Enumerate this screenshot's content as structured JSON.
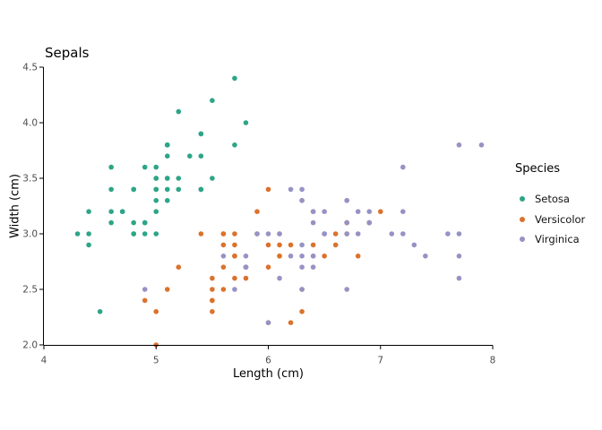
{
  "chart_data": {
    "type": "scatter",
    "title": "Sepals",
    "xlabel": "Length (cm)",
    "ylabel": "Width (cm)",
    "xlim": [
      4,
      8
    ],
    "ylim": [
      2.0,
      4.5
    ],
    "x_ticks": [
      "4",
      "5",
      "6",
      "7",
      "8"
    ],
    "y_ticks": [
      "2.0",
      "2.5",
      "3.0",
      "3.5",
      "4.0",
      "4.5"
    ],
    "grid": false,
    "legend_title": "Species",
    "legend_position": "right",
    "axis_color": "#000000",
    "tick_label_color": "#4d4d4d",
    "series": [
      {
        "name": "Setosa",
        "color": "#2DA587",
        "points": [
          [
            5.1,
            3.5
          ],
          [
            4.9,
            3.0
          ],
          [
            4.7,
            3.2
          ],
          [
            4.6,
            3.1
          ],
          [
            5.0,
            3.6
          ],
          [
            5.4,
            3.9
          ],
          [
            4.6,
            3.4
          ],
          [
            5.0,
            3.4
          ],
          [
            4.4,
            2.9
          ],
          [
            4.9,
            3.1
          ],
          [
            5.4,
            3.7
          ],
          [
            4.8,
            3.4
          ],
          [
            4.8,
            3.0
          ],
          [
            4.3,
            3.0
          ],
          [
            5.8,
            4.0
          ],
          [
            5.7,
            4.4
          ],
          [
            5.4,
            3.9
          ],
          [
            5.1,
            3.5
          ],
          [
            5.7,
            3.8
          ],
          [
            5.1,
            3.8
          ],
          [
            5.4,
            3.4
          ],
          [
            5.1,
            3.7
          ],
          [
            4.6,
            3.6
          ],
          [
            5.1,
            3.3
          ],
          [
            4.8,
            3.4
          ],
          [
            5.0,
            3.0
          ],
          [
            5.0,
            3.4
          ],
          [
            5.2,
            3.5
          ],
          [
            5.2,
            3.4
          ],
          [
            4.7,
            3.2
          ],
          [
            4.8,
            3.1
          ],
          [
            5.4,
            3.4
          ],
          [
            5.2,
            4.1
          ],
          [
            5.5,
            4.2
          ],
          [
            4.9,
            3.1
          ],
          [
            5.0,
            3.2
          ],
          [
            5.5,
            3.5
          ],
          [
            4.9,
            3.6
          ],
          [
            4.4,
            3.0
          ],
          [
            5.1,
            3.4
          ],
          [
            5.0,
            3.5
          ],
          [
            4.5,
            2.3
          ],
          [
            4.4,
            3.2
          ],
          [
            5.0,
            3.5
          ],
          [
            5.1,
            3.8
          ],
          [
            4.8,
            3.0
          ],
          [
            5.1,
            3.8
          ],
          [
            4.6,
            3.2
          ],
          [
            5.3,
            3.7
          ],
          [
            5.0,
            3.3
          ]
        ]
      },
      {
        "name": "Versicolor",
        "color": "#DB722C",
        "points": [
          [
            7.0,
            3.2
          ],
          [
            6.4,
            3.2
          ],
          [
            6.9,
            3.1
          ],
          [
            5.5,
            2.3
          ],
          [
            6.5,
            2.8
          ],
          [
            5.7,
            2.8
          ],
          [
            6.3,
            3.3
          ],
          [
            4.9,
            2.4
          ],
          [
            6.6,
            2.9
          ],
          [
            5.2,
            2.7
          ],
          [
            5.0,
            2.0
          ],
          [
            5.9,
            3.0
          ],
          [
            6.0,
            2.2
          ],
          [
            6.1,
            2.9
          ],
          [
            5.6,
            2.9
          ],
          [
            6.7,
            3.1
          ],
          [
            5.6,
            3.0
          ],
          [
            5.8,
            2.7
          ],
          [
            6.2,
            2.2
          ],
          [
            5.6,
            2.5
          ],
          [
            5.9,
            3.2
          ],
          [
            6.1,
            2.8
          ],
          [
            6.3,
            2.5
          ],
          [
            6.1,
            2.8
          ],
          [
            6.4,
            2.9
          ],
          [
            6.6,
            3.0
          ],
          [
            6.8,
            2.8
          ],
          [
            6.7,
            3.0
          ],
          [
            6.0,
            2.9
          ],
          [
            5.7,
            2.6
          ],
          [
            5.5,
            2.4
          ],
          [
            5.5,
            2.4
          ],
          [
            5.8,
            2.7
          ],
          [
            6.0,
            2.7
          ],
          [
            5.4,
            3.0
          ],
          [
            6.0,
            3.4
          ],
          [
            6.7,
            3.1
          ],
          [
            6.3,
            2.3
          ],
          [
            5.6,
            3.0
          ],
          [
            5.5,
            2.5
          ],
          [
            5.5,
            2.6
          ],
          [
            6.1,
            3.0
          ],
          [
            5.8,
            2.6
          ],
          [
            5.0,
            2.3
          ],
          [
            5.6,
            2.7
          ],
          [
            5.7,
            3.0
          ],
          [
            5.7,
            2.9
          ],
          [
            6.2,
            2.9
          ],
          [
            5.1,
            2.5
          ],
          [
            5.7,
            2.8
          ]
        ]
      },
      {
        "name": "Virginica",
        "color": "#9692C4",
        "points": [
          [
            6.3,
            3.3
          ],
          [
            5.8,
            2.7
          ],
          [
            7.1,
            3.0
          ],
          [
            6.3,
            2.9
          ],
          [
            6.5,
            3.0
          ],
          [
            7.6,
            3.0
          ],
          [
            4.9,
            2.5
          ],
          [
            7.3,
            2.9
          ],
          [
            6.7,
            2.5
          ],
          [
            7.2,
            3.6
          ],
          [
            6.5,
            3.2
          ],
          [
            6.4,
            2.7
          ],
          [
            6.8,
            3.0
          ],
          [
            5.7,
            2.5
          ],
          [
            5.8,
            2.8
          ],
          [
            6.4,
            3.2
          ],
          [
            6.5,
            3.0
          ],
          [
            7.7,
            3.8
          ],
          [
            7.7,
            2.6
          ],
          [
            6.0,
            2.2
          ],
          [
            6.9,
            3.2
          ],
          [
            5.6,
            2.8
          ],
          [
            7.7,
            2.8
          ],
          [
            6.3,
            2.7
          ],
          [
            6.7,
            3.3
          ],
          [
            7.2,
            3.2
          ],
          [
            6.2,
            2.8
          ],
          [
            6.1,
            3.0
          ],
          [
            6.4,
            2.8
          ],
          [
            7.2,
            3.0
          ],
          [
            7.4,
            2.8
          ],
          [
            7.9,
            3.8
          ],
          [
            6.4,
            2.8
          ],
          [
            6.3,
            2.8
          ],
          [
            6.1,
            2.6
          ],
          [
            7.7,
            3.0
          ],
          [
            6.3,
            3.4
          ],
          [
            6.4,
            3.1
          ],
          [
            6.0,
            3.0
          ],
          [
            6.9,
            3.1
          ],
          [
            6.7,
            3.1
          ],
          [
            6.9,
            3.1
          ],
          [
            5.8,
            2.7
          ],
          [
            6.8,
            3.2
          ],
          [
            6.7,
            3.3
          ],
          [
            6.7,
            3.0
          ],
          [
            6.3,
            2.5
          ],
          [
            6.5,
            3.0
          ],
          [
            6.2,
            3.4
          ],
          [
            5.9,
            3.0
          ]
        ]
      }
    ]
  }
}
